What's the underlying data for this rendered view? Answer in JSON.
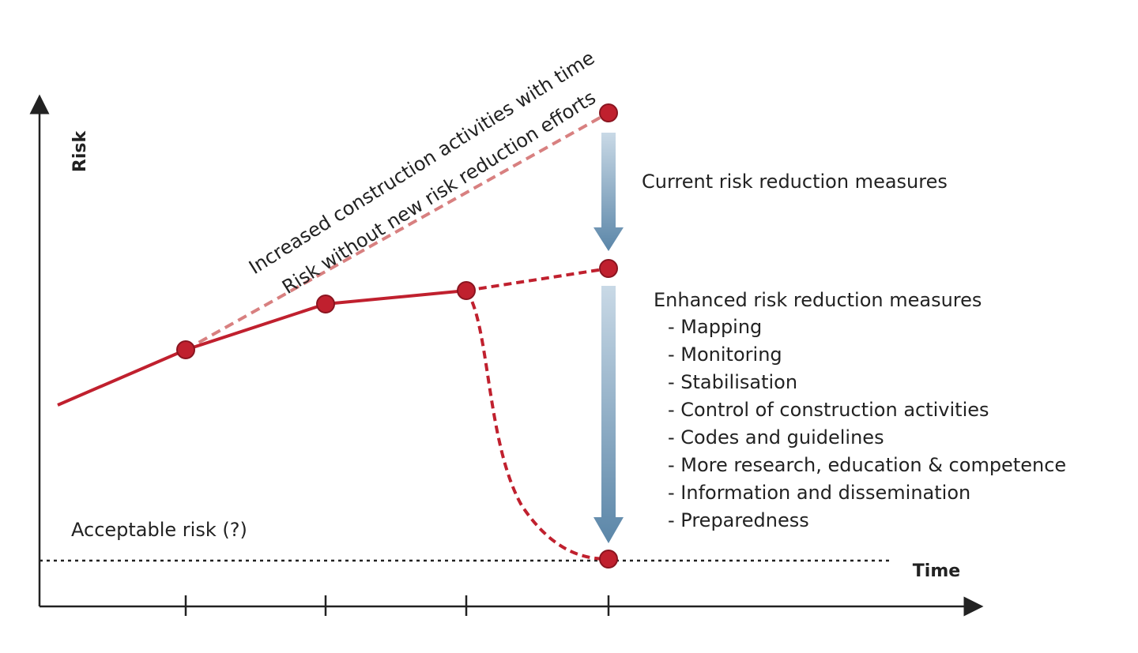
{
  "axes": {
    "y_label": "Risk",
    "x_label": "Time"
  },
  "trend_labels": {
    "increased": "Increased construction activities with time",
    "without": "Risk without new risk reduction efforts"
  },
  "current": {
    "title": "Current risk reduction measures"
  },
  "enhanced": {
    "title": "Enhanced risk reduction measures",
    "items": [
      "- Mapping",
      "- Monitoring",
      "- Stabilisation",
      "- Control of construction activities",
      "- Codes and guidelines",
      "- More research, education & competence",
      "- Information and dissemination",
      "- Preparedness"
    ]
  },
  "acceptable": "Acceptable risk (?)"
}
